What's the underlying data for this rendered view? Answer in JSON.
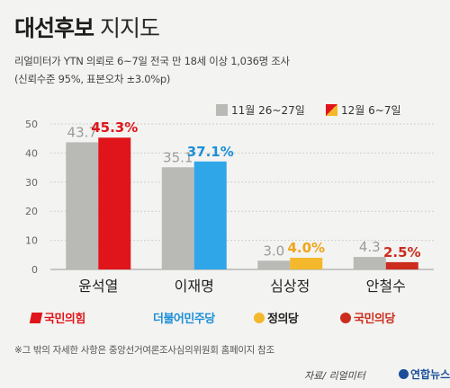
{
  "header": {
    "title_bold": "대선후보",
    "title_rest": "지지도",
    "line1": "리얼미터가 YTN 의뢰로 6~7일 전국 만 18세 이상 1,036명 조사",
    "line2": "(신뢰수준 95%, 표본오차 ±3.0%p)"
  },
  "chart_data": {
    "type": "bar",
    "categories": [
      "윤석열",
      "이재명",
      "심상정",
      "안철수"
    ],
    "series": [
      {
        "name": "11월 26~27일",
        "values": [
          43.7,
          35.1,
          3.0,
          4.3
        ]
      },
      {
        "name": "12월 6~7일",
        "values": [
          45.3,
          37.1,
          4.0,
          2.5
        ]
      }
    ],
    "value_labels_latest": [
      "45.3%",
      "37.1%",
      "4.0%",
      "2.5%"
    ],
    "yticks": [
      0,
      10,
      20,
      30,
      40,
      50
    ],
    "ylim": [
      0,
      50
    ],
    "grid": true,
    "legend": "top-right",
    "colors": {
      "previous": "#b9b9b6",
      "latest": [
        "#e0151b",
        "#2fa6e8",
        "#f3b82b",
        "#cc2c1c"
      ],
      "latest_label": [
        "#e0151b",
        "#1d8fd8",
        "#efa51a",
        "#cc2c1c"
      ]
    }
  },
  "parties": [
    {
      "name": "국민의힘",
      "color": "#e0151b",
      "icon": "ppp-logo-icon"
    },
    {
      "name": "더불어민주당",
      "color": "#1d8fd8",
      "icon": "democratic-logo-icon"
    },
    {
      "name": "정의당",
      "color": "#222222",
      "icon": "justice-logo-icon"
    },
    {
      "name": "국민의당",
      "color": "#cc2c1c",
      "icon": "peoples-party-logo-icon"
    }
  ],
  "footer": {
    "note": "※그 밖의 자세한 사항은 중앙선거여론조사심의위원회 홈페이지 참조",
    "source": "자료/ 리얼미터",
    "brand": "연합뉴스"
  }
}
